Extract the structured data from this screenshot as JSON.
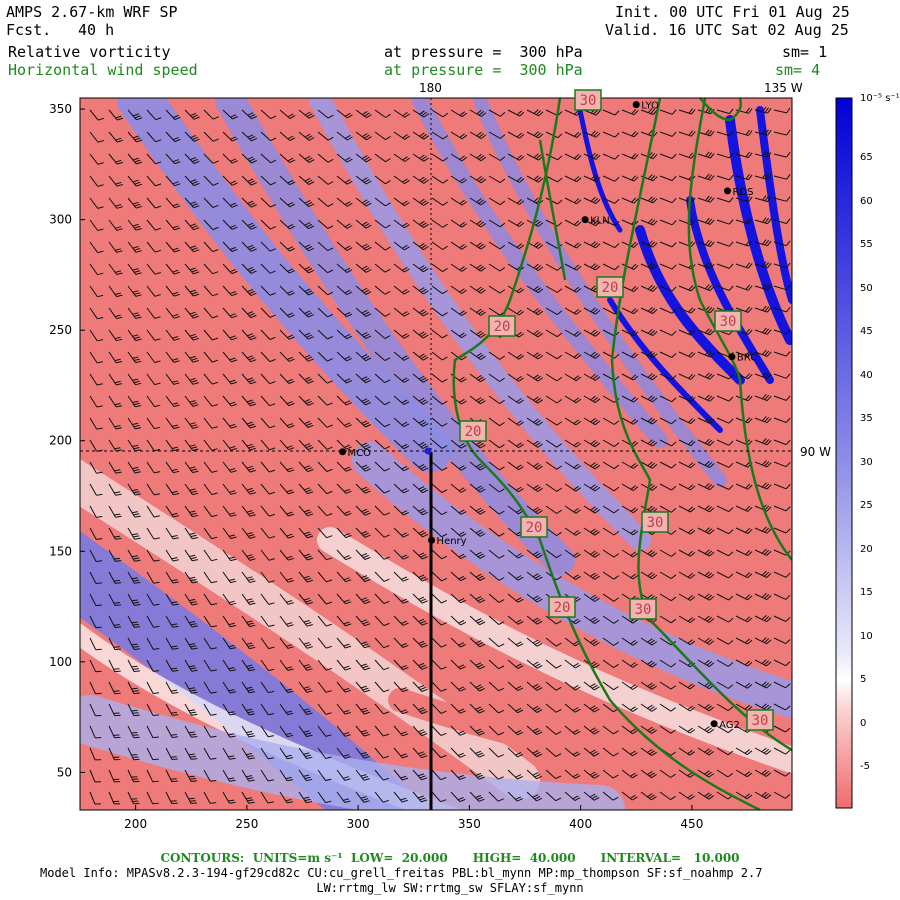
{
  "header": {
    "model": "AMPS 2.67-km WRF SP",
    "forecast_label": "Fcst.",
    "forecast_hours": "40 h",
    "init": "Init. 00 UTC Fri 01 Aug 25",
    "valid": "Valid. 16 UTC Sat 02 Aug 25",
    "field1": "Relative vorticity",
    "field1_level": "at pressure =  300 hPa",
    "field1_sm": "sm= 1",
    "field2": "Horizontal wind speed",
    "field2_level": "at pressure =  300 hPa",
    "field2_sm": "sm= 4"
  },
  "map": {
    "longitude_labels": {
      "top_180": "180",
      "top_135w": "135 W",
      "right_90w": "90 W"
    },
    "stations": [
      {
        "name": "MCO",
        "x": 293,
        "y": 195
      },
      {
        "name": "Henry",
        "x": 333,
        "y": 155
      },
      {
        "name": "KLN",
        "x": 402,
        "y": 300
      },
      {
        "name": "RDS",
        "x": 466,
        "y": 313
      },
      {
        "name": "BRC",
        "x": 468,
        "y": 238
      },
      {
        "name": "AG2",
        "x": 460,
        "y": 72
      },
      {
        "name": "LYO",
        "x": 425,
        "y": 352
      }
    ],
    "contour_labels": [
      "20",
      "20",
      "20",
      "20",
      "20",
      "30",
      "30",
      "30",
      "30",
      "30"
    ],
    "colors": {
      "positive": "#1010e0",
      "negative": "#ef6b6b",
      "contour": "#1a7a1a"
    }
  },
  "chart_data": {
    "type": "heatmap",
    "xlim": [
      175,
      495
    ],
    "ylim": [
      33,
      355
    ],
    "x_ticks": [
      200,
      250,
      300,
      350,
      400,
      450
    ],
    "y_ticks": [
      50,
      100,
      150,
      200,
      250,
      300,
      350
    ],
    "colorbar": {
      "unit": "10⁻⁵ s⁻¹",
      "ticks": [
        "65",
        "60",
        "55",
        "50",
        "45",
        "40",
        "35",
        "30",
        "25",
        "20",
        "15",
        "10",
        "5",
        "0",
        "-5"
      ]
    },
    "contours": {
      "field": "Horizontal wind speed",
      "units": "m s⁻¹",
      "low": 20,
      "high": 40,
      "interval": 10
    }
  },
  "footer": {
    "contours": "CONTOURS:  UNITS=m s⁻¹  LOW=  20.000      HIGH=  40.000      INTERVAL=   10.000",
    "model_info": "Model Info: MPASv8.2.3-194-gf29cd82c CU:cu_grell_freitas PBL:bl_mynn MP:mp_thompson SF:sf_noahmp 2.7",
    "model_info2": "LW:rrtmg_lw SW:rrtmg_sw SFLAY:sf_mynn"
  }
}
